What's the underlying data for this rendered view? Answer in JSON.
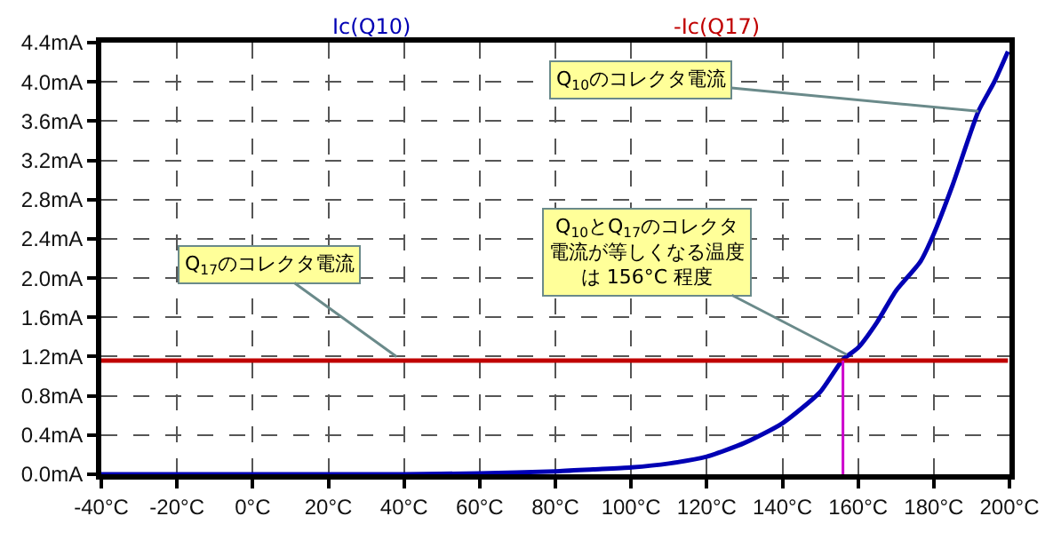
{
  "chart_data": {
    "type": "line",
    "x": [
      -40,
      0,
      40,
      60,
      80,
      90,
      100,
      110,
      120,
      130,
      140,
      150,
      156,
      160,
      165,
      170,
      176.5,
      180,
      185,
      191.8,
      196,
      199.6
    ],
    "series": [
      {
        "name": "Ic(Q10)",
        "color": "#0000b4",
        "values": [
          0,
          0,
          0,
          0.01,
          0.03,
          0.05,
          0.07,
          0.11,
          0.18,
          0.32,
          0.52,
          0.84,
          1.17,
          1.29,
          1.55,
          1.87,
          2.17,
          2.45,
          2.95,
          3.7,
          4.0,
          4.31
        ]
      },
      {
        "name": "-Ic(Q17)",
        "color": "#c00000",
        "values": [
          1.16,
          1.16,
          1.16,
          1.16,
          1.16,
          1.16,
          1.16,
          1.16,
          1.16,
          1.16,
          1.16,
          1.16,
          1.16,
          1.16,
          1.16,
          1.16,
          1.16,
          1.16,
          1.16,
          1.16,
          1.16,
          1.16
        ]
      }
    ],
    "xlim": [
      -40,
      200
    ],
    "xticks": [
      {
        "value": -40,
        "label": "-40°C"
      },
      {
        "value": -20,
        "label": "-20°C"
      },
      {
        "value": 0,
        "label": "0°C"
      },
      {
        "value": 20,
        "label": "20°C"
      },
      {
        "value": 40,
        "label": "40°C"
      },
      {
        "value": 60,
        "label": "60°C"
      },
      {
        "value": 80,
        "label": "80°C"
      },
      {
        "value": 100,
        "label": "100°C"
      },
      {
        "value": 120,
        "label": "120°C"
      },
      {
        "value": 140,
        "label": "140°C"
      },
      {
        "value": 160,
        "label": "160°C"
      },
      {
        "value": 180,
        "label": "180°C"
      },
      {
        "value": 200,
        "label": "200°C"
      }
    ],
    "ylim": [
      0,
      4.4
    ],
    "yticks": [
      {
        "value": 0,
        "label": "0.0mA"
      },
      {
        "value": 0.4,
        "label": "0.4mA"
      },
      {
        "value": 0.8,
        "label": "0.8mA"
      },
      {
        "value": 1.2,
        "label": "1.2mA"
      },
      {
        "value": 1.6,
        "label": "1.6mA"
      },
      {
        "value": 2.0,
        "label": "2.0mA"
      },
      {
        "value": 2.4,
        "label": "2.4mA"
      },
      {
        "value": 2.8,
        "label": "2.8mA"
      },
      {
        "value": 3.2,
        "label": "3.2mA"
      },
      {
        "value": 3.6,
        "label": "3.6mA"
      },
      {
        "value": 4.0,
        "label": "4.0mA"
      },
      {
        "value": 4.4,
        "label": "4.4mA"
      }
    ],
    "ref_lines": [
      {
        "axis": "x",
        "value": 156,
        "color": "#cc00cc"
      }
    ],
    "annotations": [
      {
        "text": "Q$_{10}$のコレクタ電流",
        "x": 191.8,
        "y": 3.7
      },
      {
        "text": "Q$_{10}$とQ$_{17}$のコレクタ電流が等しくなる温度は 156°C 程度",
        "x": 157,
        "y": 1.22
      },
      {
        "text": "Q$_{17}$のコレクタ電流",
        "x": 38,
        "y": 1.2
      }
    ],
    "grid": true,
    "marker": "none",
    "line_style": "solid"
  }
}
